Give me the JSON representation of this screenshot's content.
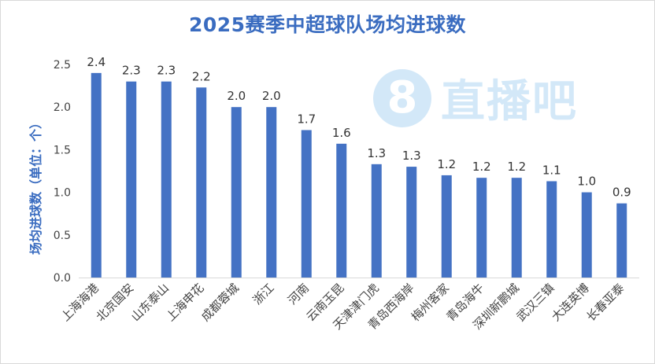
{
  "chart_data": {
    "type": "bar",
    "title": "2025赛季中超球队场均进球数",
    "xlabel": "",
    "ylabel": "场均进球数（单位：个）",
    "ylim": [
      0,
      2.5
    ],
    "yticks": [
      "0.0",
      "0.5",
      "1.0",
      "1.5",
      "2.0",
      "2.5"
    ],
    "grid": false,
    "legend": "none",
    "bar_color": "#4472c4",
    "categories": [
      "上海海港",
      "北京国安",
      "山东泰山",
      "上海申花",
      "成都蓉城",
      "浙江",
      "河南",
      "云南玉昆",
      "天津津门虎",
      "青岛西海岸",
      "梅州客家",
      "青岛海牛",
      "深圳新鹏城",
      "武汉三镇",
      "大连英博",
      "长春亚泰"
    ],
    "values": [
      2.4,
      2.3,
      2.3,
      2.2,
      2.0,
      2.0,
      1.7,
      1.6,
      1.3,
      1.3,
      1.2,
      1.2,
      1.2,
      1.1,
      1.0,
      0.9
    ],
    "data_labels": [
      "2.4",
      "2.3",
      "2.3",
      "2.2",
      "2.0",
      "2.0",
      "1.7",
      "1.6",
      "1.3",
      "1.3",
      "1.2",
      "1.2",
      "1.2",
      "1.1",
      "1.0",
      "0.9"
    ],
    "bar_heights_exact": [
      2.4,
      2.3,
      2.3,
      2.23,
      2.0,
      2.0,
      1.73,
      1.57,
      1.33,
      1.3,
      1.2,
      1.17,
      1.17,
      1.13,
      1.0,
      0.87
    ]
  },
  "watermark": {
    "digit": "8",
    "text": "直播吧",
    "color": "#cfe6f8"
  }
}
